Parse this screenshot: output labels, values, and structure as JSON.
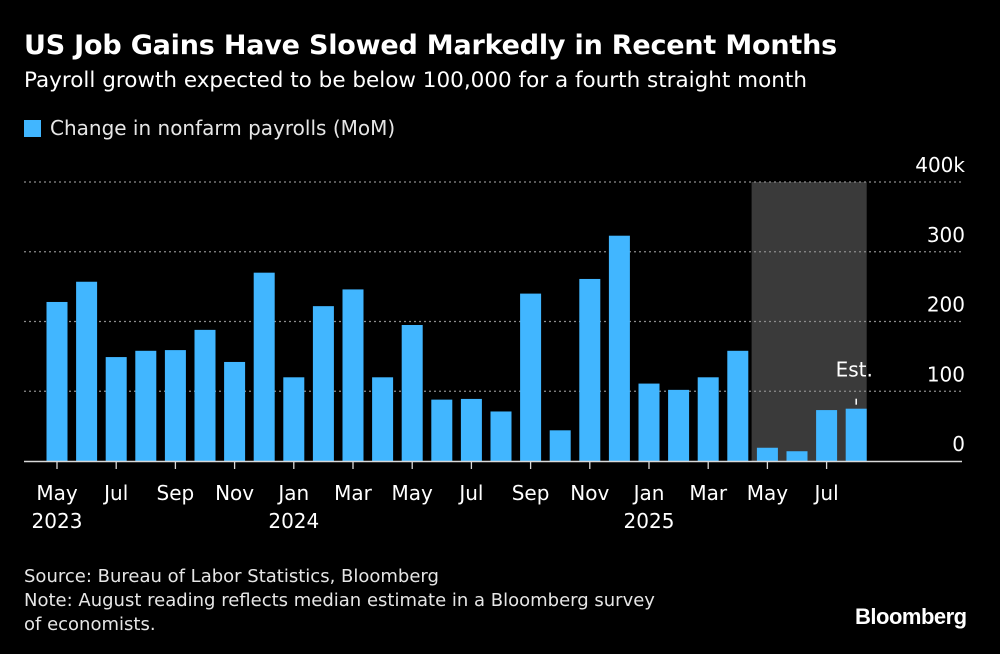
{
  "title": "US Job Gains Have Slowed Markedly in Recent Months",
  "subtitle": "Payroll growth expected to be below 100,000 for a fourth straight month",
  "colors": {
    "background": "#000000",
    "bar": "#41b6ff",
    "grid": "#8c8c8c",
    "shade": "#3a3a3a",
    "text": "#ffffff"
  },
  "footer": {
    "source": "Source: Bureau of Labor Statistics, Bloomberg",
    "note_line1": "Note: August reading reflects median estimate in a Bloomberg survey",
    "note_line2": "of economists."
  },
  "brand": "Bloomberg",
  "chart_data": {
    "type": "bar",
    "legend": "Change in nonfarm payrolls (MoM)",
    "categories": [
      "May 2023",
      "Jun 2023",
      "Jul 2023",
      "Aug 2023",
      "Sep 2023",
      "Oct 2023",
      "Nov 2023",
      "Dec 2023",
      "Jan 2024",
      "Feb 2024",
      "Mar 2024",
      "Apr 2024",
      "May 2024",
      "Jun 2024",
      "Jul 2024",
      "Aug 2024",
      "Sep 2024",
      "Oct 2024",
      "Nov 2024",
      "Dec 2024",
      "Jan 2025",
      "Feb 2025",
      "Mar 2025",
      "Apr 2025",
      "May 2025",
      "Jun 2025",
      "Jul 2025",
      "Aug 2025"
    ],
    "values": [
      228,
      257,
      149,
      158,
      159,
      188,
      142,
      270,
      120,
      222,
      246,
      120,
      195,
      88,
      89,
      71,
      240,
      44,
      261,
      323,
      111,
      102,
      120,
      158,
      19,
      14,
      73,
      75
    ],
    "ylim": [
      0,
      400
    ],
    "yticks": [
      {
        "value": 0,
        "label": "0"
      },
      {
        "value": 100,
        "label": "100"
      },
      {
        "value": 200,
        "label": "200"
      },
      {
        "value": 300,
        "label": "300"
      },
      {
        "value": 400,
        "label": "400k"
      }
    ],
    "xticks": [
      {
        "index": 0,
        "label": "May",
        "year": "2023"
      },
      {
        "index": 2,
        "label": "Jul",
        "year": ""
      },
      {
        "index": 4,
        "label": "Sep",
        "year": ""
      },
      {
        "index": 6,
        "label": "Nov",
        "year": ""
      },
      {
        "index": 8,
        "label": "Jan",
        "year": "2024"
      },
      {
        "index": 10,
        "label": "Mar",
        "year": ""
      },
      {
        "index": 12,
        "label": "May",
        "year": ""
      },
      {
        "index": 14,
        "label": "Jul",
        "year": ""
      },
      {
        "index": 16,
        "label": "Sep",
        "year": ""
      },
      {
        "index": 18,
        "label": "Nov",
        "year": ""
      },
      {
        "index": 20,
        "label": "Jan",
        "year": "2025"
      },
      {
        "index": 22,
        "label": "Mar",
        "year": ""
      },
      {
        "index": 24,
        "label": "May",
        "year": ""
      },
      {
        "index": 26,
        "label": "Jul",
        "year": ""
      }
    ],
    "shaded_range": {
      "start_index": 24,
      "end_index": 27
    },
    "annotation": {
      "index": 27,
      "label": "Est."
    },
    "grid": true,
    "legend_position": "top-left"
  }
}
